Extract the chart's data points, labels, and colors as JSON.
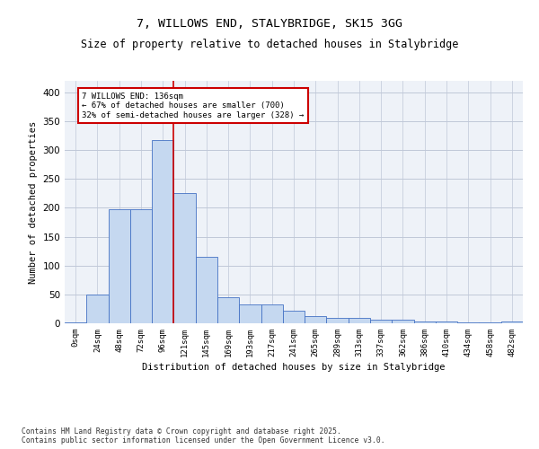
{
  "title_line1": "7, WILLOWS END, STALYBRIDGE, SK15 3GG",
  "title_line2": "Size of property relative to detached houses in Stalybridge",
  "xlabel": "Distribution of detached houses by size in Stalybridge",
  "ylabel": "Number of detached properties",
  "footnote": "Contains HM Land Registry data © Crown copyright and database right 2025.\nContains public sector information licensed under the Open Government Licence v3.0.",
  "bar_labels": [
    "0sqm",
    "24sqm",
    "48sqm",
    "72sqm",
    "96sqm",
    "121sqm",
    "145sqm",
    "169sqm",
    "193sqm",
    "217sqm",
    "241sqm",
    "265sqm",
    "289sqm",
    "313sqm",
    "337sqm",
    "362sqm",
    "386sqm",
    "410sqm",
    "434sqm",
    "458sqm",
    "482sqm"
  ],
  "bar_values": [
    2,
    50,
    197,
    197,
    317,
    225,
    115,
    45,
    33,
    33,
    22,
    12,
    9,
    9,
    6,
    6,
    3,
    3,
    1,
    1,
    3
  ],
  "bar_color": "#c5d8f0",
  "bar_edge_color": "#4472c4",
  "annotation_text": "7 WILLOWS END: 136sqm\n← 67% of detached houses are smaller (700)\n32% of semi-detached houses are larger (328) →",
  "annotation_box_color": "#ffffff",
  "annotation_box_edge": "#cc0000",
  "vline_color": "#cc0000",
  "vline_x_bin": 5,
  "ylim": [
    0,
    420
  ],
  "yticks": [
    0,
    50,
    100,
    150,
    200,
    250,
    300,
    350,
    400
  ],
  "grid_color": "#c0c8d8",
  "background_color": "#eef2f8",
  "fig_background": "#ffffff",
  "title_fontsize": 9.5,
  "subtitle_fontsize": 8.5,
  "footnote_fontsize": 5.8
}
